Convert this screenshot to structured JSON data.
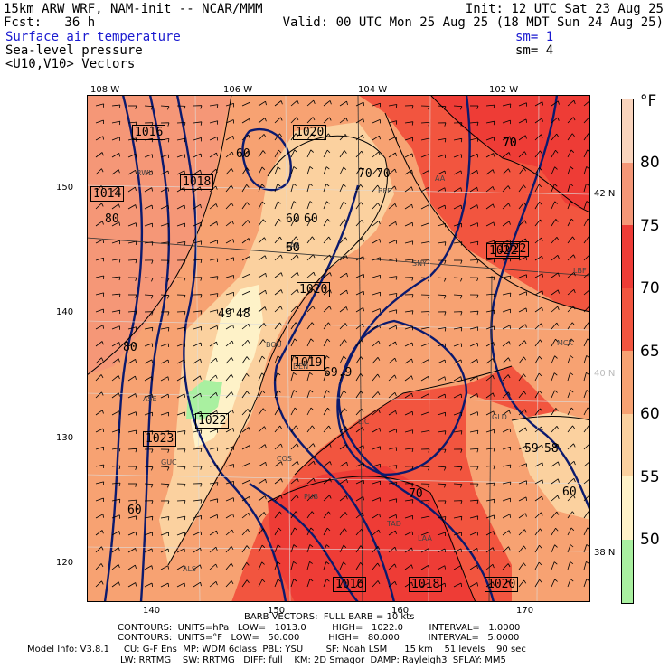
{
  "header": {
    "line1_left": "15km ARW WRF, NAM-init -- NCAR/MMM",
    "line1_right": "Init: 12 UTC Sat 23 Aug 25",
    "line2_left": "Fcst:   36 h",
    "line2_right": "Valid: 00 UTC Mon 25 Aug 25 (18 MDT Sun 24 Aug 25)",
    "field1": "Surface air temperature",
    "field1_sm": "sm= 1",
    "field2": "Sea-level pressure",
    "field2_sm": "sm= 4",
    "field3": "<U10,V10> Vectors"
  },
  "map_axes": {
    "top_lon": [
      "108 W",
      "106 W",
      "104 W",
      "102 W"
    ],
    "left_y": [
      "150",
      "140",
      "130",
      "120"
    ],
    "bottom_x": [
      "140",
      "150",
      "160",
      "170"
    ],
    "right_lat": [
      "42 N",
      "40 N",
      "38 N"
    ]
  },
  "colorbar": {
    "unit": "°F",
    "labels": [
      "80",
      "75",
      "70",
      "65",
      "60",
      "55",
      "50"
    ],
    "colors": [
      "#f9d4bd",
      "#f59777",
      "#ee3c36",
      "#f2553f",
      "#f7a272",
      "#fbd19f",
      "#fef2c8",
      "#a9f0a0"
    ]
  },
  "map_labels": {
    "highs_lows": [
      "1016",
      "1018",
      "1020",
      "1014",
      "1020",
      "1022",
      "1019",
      "1022",
      "1023",
      "1022",
      "1020",
      "1016",
      "1018"
    ],
    "temp_labels": [
      "60",
      "80",
      "60",
      "70",
      "70",
      "50",
      "60",
      "70",
      "49",
      "48",
      "60",
      "69.9",
      "70",
      "60",
      "70",
      "60",
      "80",
      "59",
      "58",
      "60"
    ],
    "stations": [
      "RWL",
      "BFF",
      "AA",
      "LAR",
      "SNY",
      "BOU",
      "DEN",
      "LIC",
      "GLD",
      "COS",
      "PUB",
      "LAA",
      "ALS",
      "TAD",
      "GUC",
      "ASE",
      "LBF",
      "MCK"
    ]
  },
  "footer": {
    "barb_line": "BARB VECTORS:  FULL BARB = 10 kts",
    "contours1": "CONTOURS:  UNITS=hPa   LOW=   1013.0         HIGH=   1022.0         INTERVAL=   1.0000",
    "contours2": "CONTOURS:  UNITS=°F   LOW=   50.000          HIGH=   80.000          INTERVAL=   5.0000",
    "model1": "Model Info: V3.8.1     CU: G-F Ens  MP: WDM 6class  PBL: YSU        SF: Noah LSM      15 km    51 levels    90 sec",
    "model2": "LW: RRTMG    SW: RRTMG   DIFF: full    KM: 2D Smagor  DAMP: Rayleigh3  SFLAY: MM5"
  }
}
